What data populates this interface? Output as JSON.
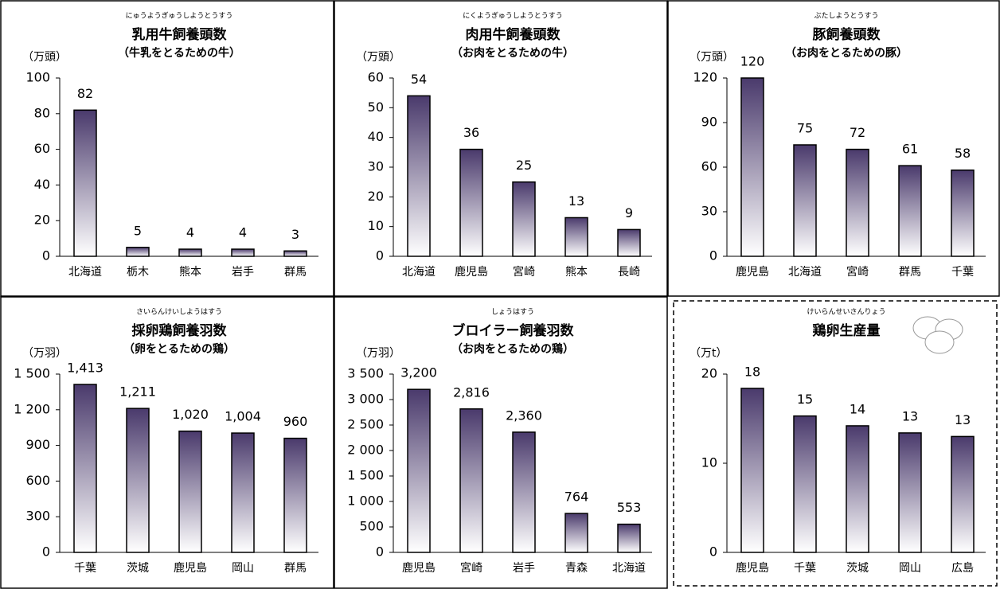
{
  "chart_data": [
    {
      "type": "bar",
      "title_reading": "にゅうようぎゅうしようとうすう",
      "title": "乳用牛飼養頭数",
      "subtitle": "（牛乳をとるための牛）",
      "y_label": "（万頭）",
      "categories": [
        "北海道",
        "栃木",
        "熊本",
        "岩手",
        "群馬"
      ],
      "values": [
        82,
        5,
        4,
        4,
        3
      ],
      "ylim": [
        0,
        100
      ],
      "yticks": [
        0,
        20,
        40,
        60,
        80,
        100
      ]
    },
    {
      "type": "bar",
      "title_reading": "にくようぎゅうしようとうすう",
      "title": "肉用牛飼養頭数",
      "subtitle": "（お肉をとるための牛）",
      "y_label": "（万頭）",
      "categories": [
        "北海道",
        "鹿児島",
        "宮崎",
        "熊本",
        "長崎"
      ],
      "values": [
        54,
        36,
        25,
        13,
        9
      ],
      "ylim": [
        0,
        60
      ],
      "yticks": [
        0,
        10,
        20,
        30,
        40,
        50,
        60
      ]
    },
    {
      "type": "bar",
      "title_reading": "ぶたしようとうすう",
      "title": "豚飼養頭数",
      "subtitle": "（お肉をとるための豚）",
      "y_label": "（万頭）",
      "categories": [
        "鹿児島",
        "北海道",
        "宮崎",
        "群馬",
        "千葉"
      ],
      "values": [
        120,
        75,
        72,
        61,
        58
      ],
      "ylim": [
        0,
        120
      ],
      "yticks": [
        0,
        30,
        60,
        90,
        120
      ]
    },
    {
      "type": "bar",
      "title_reading": "さいらんけいしようはすう",
      "title": "採卵鶏飼養羽数",
      "subtitle": "（卵をとるための鶏）",
      "y_label": "（万羽）",
      "categories": [
        "千葉",
        "茨城",
        "鹿児島",
        "岡山",
        "群馬"
      ],
      "values": [
        1413,
        1211,
        1020,
        1004,
        960
      ],
      "value_labels": [
        "1,413",
        "1,211",
        "1,020",
        "1,004",
        "960"
      ],
      "ylim": [
        0,
        1500
      ],
      "yticks": [
        0,
        300,
        600,
        900,
        {
          "value": 1200,
          "label": "1 200"
        },
        {
          "value": 1500,
          "label": "1 500"
        }
      ]
    },
    {
      "type": "bar",
      "title_reading": "しょうはすう",
      "title": "ブロイラー飼養羽数",
      "subtitle": "（お肉をとるための鶏）",
      "y_label": "（万羽）",
      "categories": [
        "鹿児島",
        "宮崎",
        "岩手",
        "青森",
        "北海道"
      ],
      "values": [
        3200,
        2816,
        2360,
        764,
        553
      ],
      "value_labels": [
        "3,200",
        "2,816",
        "2,360",
        "764",
        "553"
      ],
      "ylim": [
        0,
        3500
      ],
      "yticks": [
        0,
        500,
        {
          "value": 1000,
          "label": "1 000"
        },
        {
          "value": 1500,
          "label": "1 500"
        },
        {
          "value": 2000,
          "label": "2 000"
        },
        {
          "value": 2500,
          "label": "2 500"
        },
        {
          "value": 3000,
          "label": "3 000"
        },
        {
          "value": 3500,
          "label": "3 500"
        }
      ]
    },
    {
      "type": "bar",
      "title_reading": "けいらんせいさんりょう",
      "title": "鶏卵生産量",
      "y_label": "（万t）",
      "categories": [
        "鹿児島",
        "千葉",
        "茨城",
        "岡山",
        "広島"
      ],
      "values": [
        18.4,
        15.3,
        14.2,
        13.4,
        13
      ],
      "value_labels": [
        "18",
        "15",
        "14",
        "13",
        "13"
      ],
      "ylim": [
        0,
        20
      ],
      "yticks": [
        0,
        10,
        20
      ]
    }
  ]
}
